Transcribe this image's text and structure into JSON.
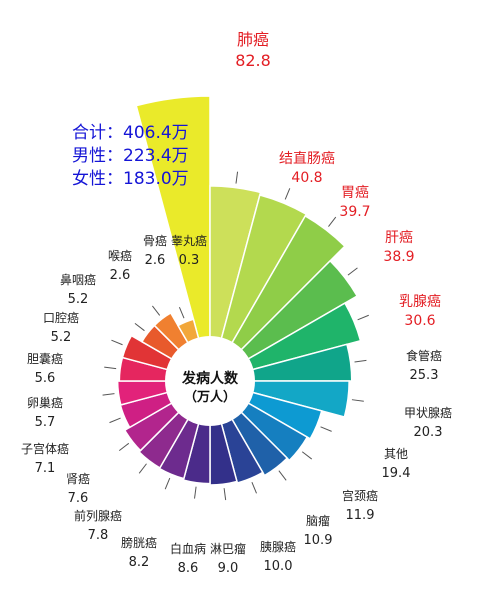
{
  "summary": {
    "total_label": "合计：",
    "total_value": "406.4万",
    "male_label": "男性：",
    "male_value": "223.4万",
    "female_label": "女性：",
    "female_value": "183.0万"
  },
  "center_label": [
    "发病人数",
    "（万人）"
  ],
  "colors": {
    "highlight_label": "#e31e24",
    "normal_label": "#222222",
    "leader": "#555555"
  },
  "chart_data": {
    "type": "polar_bar",
    "title": "发病人数（万人）",
    "categories": [
      "肺癌",
      "结直肠癌",
      "胃癌",
      "肝癌",
      "乳腺癌",
      "食管癌",
      "甲状腺癌",
      "其他",
      "宫颈癌",
      "脑瘤",
      "胰腺癌",
      "淋巴瘤",
      "白血病",
      "膀胱癌",
      "前列腺癌",
      "肾癌",
      "子宫体癌",
      "卵巢癌",
      "胆囊癌",
      "口腔癌",
      "鼻咽癌",
      "喉癌",
      "骨癌",
      "睾丸癌"
    ],
    "values": [
      82.8,
      40.8,
      39.7,
      38.9,
      30.6,
      25.3,
      20.3,
      19.4,
      11.9,
      10.9,
      10.0,
      9.0,
      8.6,
      8.2,
      7.8,
      7.6,
      7.1,
      5.7,
      5.6,
      5.2,
      5.2,
      2.6,
      2.6,
      0.3
    ],
    "value_labels": [
      "82.8",
      "40.8",
      "39.7",
      "38.9",
      "30.6",
      "25.3",
      "20.3",
      "19.4",
      "11.9",
      "10.9",
      "10.0",
      "9.0",
      "8.6",
      "8.2",
      "7.8",
      "7.6",
      "7.1",
      "5.7",
      "5.6",
      "5.2",
      "5.2",
      "2.6",
      "2.6",
      "0.3"
    ],
    "highlighted": [
      "肺癌",
      "结直肠癌",
      "胃癌",
      "肝癌",
      "乳腺癌"
    ],
    "segment_colors": [
      "#eaea2a",
      "#cde05a",
      "#b3d94e",
      "#8fcd48",
      "#5bbd4e",
      "#1fb46a",
      "#10a58a",
      "#13a7c6",
      "#0d9ad2",
      "#157fc0",
      "#1f61a9",
      "#2a4396",
      "#33308a",
      "#4b2b8a",
      "#6d2b8e",
      "#8e2a8e",
      "#b2258d",
      "#cf1f84",
      "#e2227a",
      "#e5265f",
      "#e13436",
      "#e85a2c",
      "#f08030",
      "#f2a73a"
    ]
  }
}
